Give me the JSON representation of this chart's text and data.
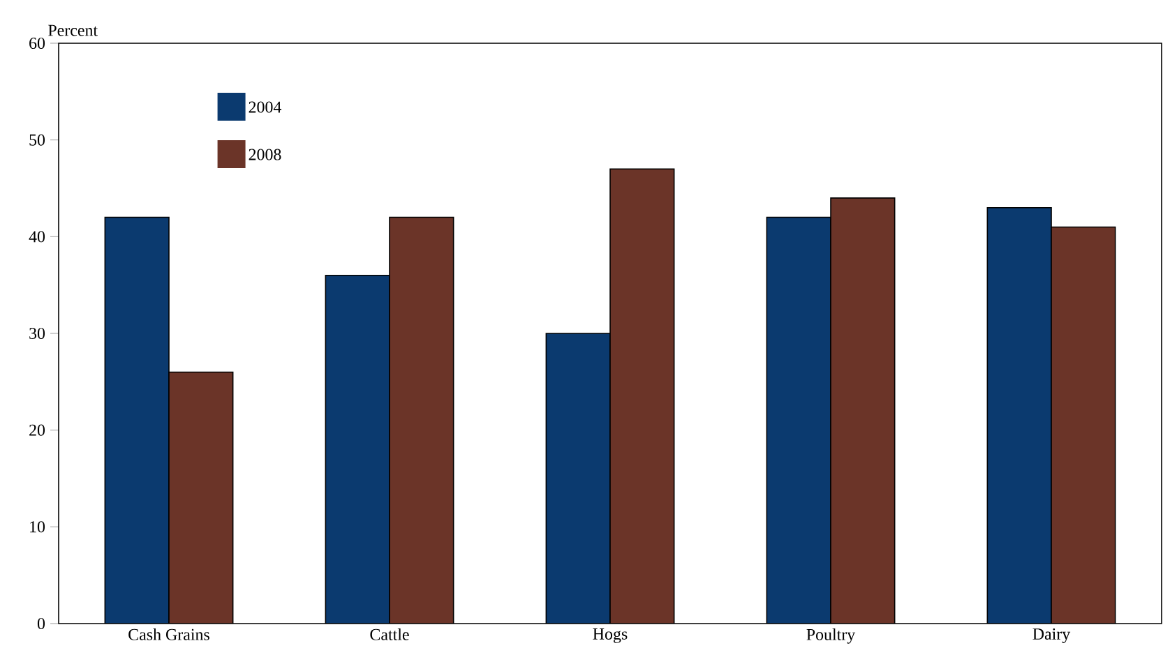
{
  "chart_data": {
    "type": "bar",
    "ylabel": "Percent",
    "categories": [
      "Cash Grains",
      "Cattle",
      "Hogs",
      "Poultry",
      "Dairy"
    ],
    "series": [
      {
        "name": "2004",
        "color": "#0b3a6f",
        "values": [
          42,
          36,
          30,
          42,
          43
        ]
      },
      {
        "name": "2008",
        "color": "#6b3428",
        "values": [
          26,
          42,
          47,
          44,
          41
        ]
      }
    ],
    "ylim": [
      0,
      60
    ],
    "yticks": [
      0,
      10,
      20,
      30,
      40,
      50,
      60
    ],
    "grid": false,
    "legend": "top left"
  }
}
